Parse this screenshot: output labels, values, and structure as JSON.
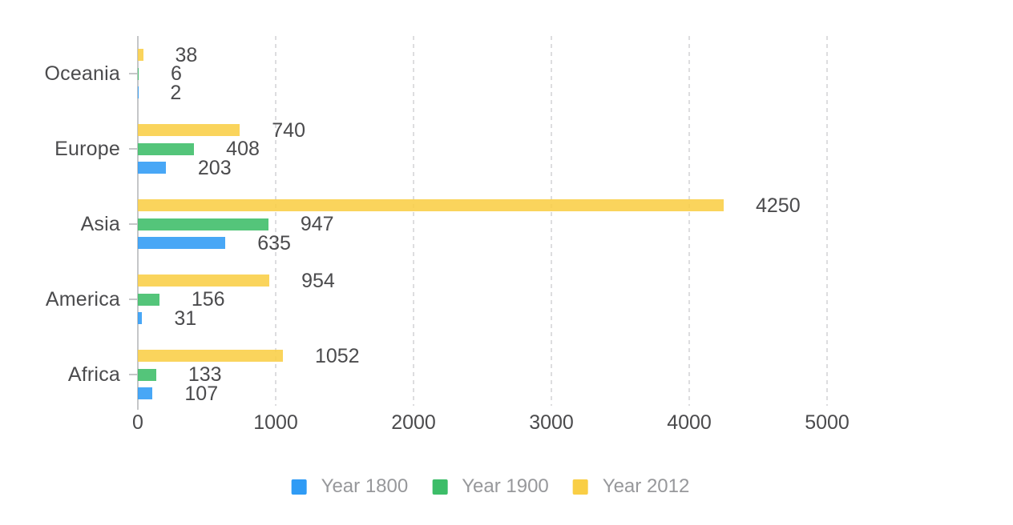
{
  "chart_data": {
    "type": "bar",
    "orientation": "horizontal",
    "title": "",
    "xlabel": "",
    "ylabel": "",
    "categories": [
      "Oceania",
      "Europe",
      "Asia",
      "America",
      "Africa"
    ],
    "series": [
      {
        "name": "Year 1800",
        "color": "#2F9BF5",
        "values": [
          2,
          203,
          635,
          31,
          107
        ]
      },
      {
        "name": "Year 1900",
        "color": "#3CBD68",
        "values": [
          6,
          408,
          947,
          156,
          133
        ]
      },
      {
        "name": "Year 2012",
        "color": "#F9CE45",
        "values": [
          38,
          740,
          4250,
          954,
          1052
        ]
      }
    ],
    "bar_draw_order_top_to_bottom": [
      "Year 2012",
      "Year 1900",
      "Year 1800"
    ],
    "value_labels_shown": true,
    "x_ticks": [
      0,
      1000,
      2000,
      3000,
      4000,
      5000
    ],
    "xlim": [
      0,
      5000
    ],
    "grid": "vertical-dashed",
    "legend_position": "bottom"
  },
  "legend": {
    "items": [
      {
        "label": "Year 1800",
        "color": "#2F9BF5"
      },
      {
        "label": "Year 1900",
        "color": "#3CBD68"
      },
      {
        "label": "Year 2012",
        "color": "#F9CE45"
      }
    ]
  },
  "colors": {
    "background": "#FFFFFF",
    "axis_line": "#C5C6C8",
    "gridline": "#DDDDDF",
    "label_text": "#4B4B4D",
    "legend_text": "#97989B"
  }
}
